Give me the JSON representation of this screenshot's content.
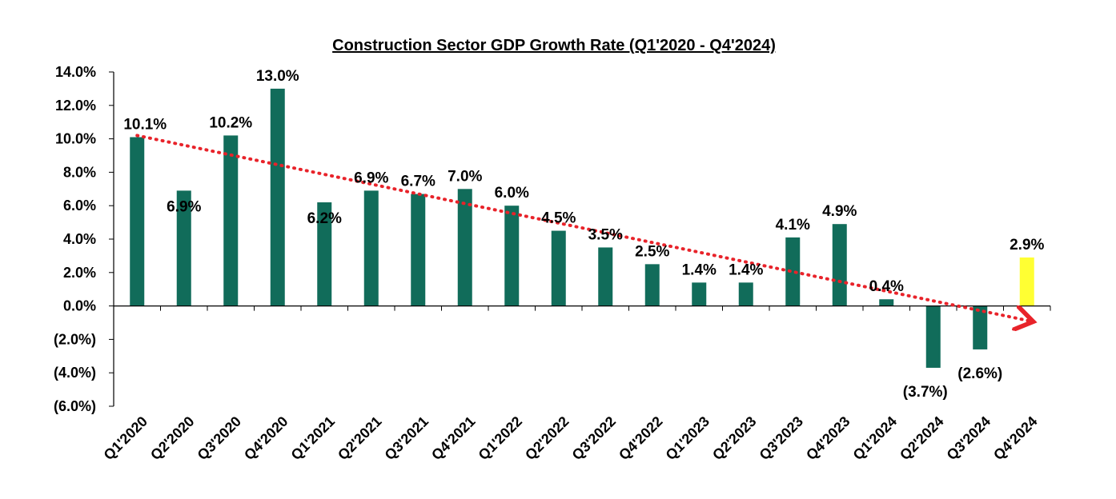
{
  "chart_data": {
    "type": "bar",
    "title": "Construction Sector GDP Growth Rate (Q1'2020 -  Q4'2024)",
    "xlabel": "",
    "ylabel": "",
    "ylim": [
      -6,
      14
    ],
    "y_ticks": [
      14,
      12,
      10,
      8,
      6,
      4,
      2,
      0,
      -2,
      -4,
      -6
    ],
    "y_tick_labels": [
      "14.0%",
      "12.0%",
      "10.0%",
      "8.0%",
      "6.0%",
      "4.0%",
      "2.0%",
      "0.0%",
      "(2.0%)",
      "(4.0%)",
      "(6.0%)"
    ],
    "categories": [
      "Q1'2020",
      "Q2'2020",
      "Q3'2020",
      "Q4'2020",
      "Q1'2021",
      "Q2'2021",
      "Q3'2021",
      "Q4'2021",
      "Q1'2022",
      "Q2'2022",
      "Q3'2022",
      "Q4'2022",
      "Q1'2023",
      "Q2'2023",
      "Q3'2023",
      "Q4'2023",
      "Q1'2024",
      "Q2'2024",
      "Q3'2024",
      "Q4'2024"
    ],
    "values": [
      10.1,
      6.9,
      10.2,
      13.0,
      6.2,
      6.9,
      6.7,
      7.0,
      6.0,
      4.5,
      3.5,
      2.5,
      1.4,
      1.4,
      4.1,
      4.9,
      0.4,
      -3.7,
      -2.6,
      2.9
    ],
    "data_labels": [
      "10.1%",
      "6.9%",
      "10.2%",
      "13.0%",
      "6.2%",
      "6.9%",
      "6.7%",
      "7.0%",
      "6.0%",
      "4.5%",
      "3.5%",
      "2.5%",
      "1.4%",
      "1.4%",
      "4.1%",
      "4.9%",
      "0.4%",
      "(3.7%)",
      "(2.6%)",
      "2.9%"
    ],
    "grid": false,
    "legend": "none",
    "colors": {
      "bar": "#116C5A",
      "highlight": "#FFFF33",
      "trendline": "#E8232A"
    },
    "highlight_index": 19,
    "trendline": {
      "style": "dotted-arrow",
      "start": 10.2,
      "end": -0.9
    }
  }
}
